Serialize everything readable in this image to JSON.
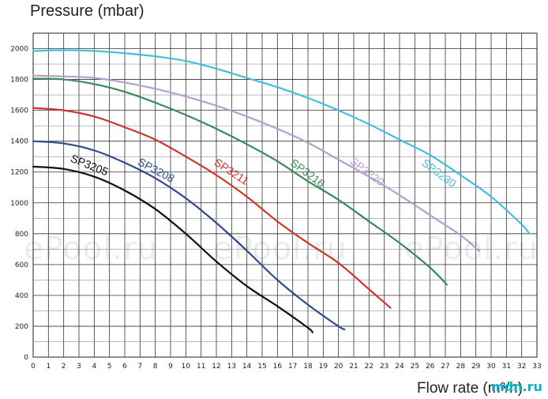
{
  "chart_data": {
    "type": "line",
    "ylabel": "Pressure (mbar)",
    "xlabel": "Flow rate (m³/h)",
    "xlim": [
      0,
      33
    ],
    "ylim": [
      0,
      2100
    ],
    "x_ticks": [
      0,
      1,
      2,
      3,
      4,
      5,
      6,
      7,
      8,
      9,
      10,
      11,
      12,
      13,
      14,
      15,
      16,
      17,
      18,
      19,
      20,
      21,
      22,
      23,
      24,
      25,
      26,
      27,
      28,
      29,
      30,
      31,
      32,
      33
    ],
    "y_ticks": [
      0,
      200,
      400,
      600,
      800,
      1000,
      1200,
      1400,
      1600,
      1800,
      2000
    ],
    "grid": true,
    "legend": "none (labels on curves)",
    "series": [
      {
        "name": "SP3205",
        "color": "#111111",
        "shutoff": 1235,
        "end_x": 18.3,
        "end_y": 160,
        "points": [
          [
            0,
            1235
          ],
          [
            2,
            1220
          ],
          [
            4,
            1170
          ],
          [
            6,
            1080
          ],
          [
            8,
            960
          ],
          [
            10,
            800
          ],
          [
            12,
            620
          ],
          [
            14,
            460
          ],
          [
            16,
            330
          ],
          [
            18,
            190
          ],
          [
            18.3,
            160
          ]
        ]
      },
      {
        "name": "SP3208",
        "color": "#2e4b8c",
        "shutoff": 1400,
        "end_x": 20.4,
        "end_y": 180,
        "points": [
          [
            0,
            1400
          ],
          [
            2,
            1385
          ],
          [
            4,
            1340
          ],
          [
            6,
            1260
          ],
          [
            8,
            1160
          ],
          [
            10,
            1030
          ],
          [
            12,
            870
          ],
          [
            14,
            690
          ],
          [
            16,
            500
          ],
          [
            18,
            340
          ],
          [
            20,
            200
          ],
          [
            20.4,
            180
          ]
        ]
      },
      {
        "name": "SP3211",
        "color": "#d0342c",
        "shutoff": 1615,
        "end_x": 23.4,
        "end_y": 320,
        "points": [
          [
            0,
            1615
          ],
          [
            2,
            1600
          ],
          [
            4,
            1560
          ],
          [
            6,
            1490
          ],
          [
            8,
            1410
          ],
          [
            10,
            1300
          ],
          [
            12,
            1180
          ],
          [
            14,
            1040
          ],
          [
            16,
            880
          ],
          [
            18,
            740
          ],
          [
            20,
            610
          ],
          [
            22,
            440
          ],
          [
            23.4,
            320
          ]
        ]
      },
      {
        "name": "SP3216",
        "color": "#3a8a5a",
        "shutoff": 1805,
        "end_x": 27.1,
        "end_y": 470,
        "points": [
          [
            0,
            1805
          ],
          [
            2,
            1800
          ],
          [
            4,
            1770
          ],
          [
            6,
            1720
          ],
          [
            8,
            1650
          ],
          [
            10,
            1570
          ],
          [
            12,
            1480
          ],
          [
            14,
            1380
          ],
          [
            16,
            1270
          ],
          [
            18,
            1140
          ],
          [
            20,
            1020
          ],
          [
            22,
            880
          ],
          [
            24,
            740
          ],
          [
            26,
            580
          ],
          [
            27.1,
            470
          ]
        ]
      },
      {
        "name": "SP3220",
        "color": "#b4a0cf",
        "shutoff": 1825,
        "end_x": 29.2,
        "end_y": 690,
        "points": [
          [
            0,
            1825
          ],
          [
            2,
            1820
          ],
          [
            4,
            1810
          ],
          [
            6,
            1780
          ],
          [
            8,
            1740
          ],
          [
            10,
            1690
          ],
          [
            12,
            1630
          ],
          [
            14,
            1560
          ],
          [
            16,
            1480
          ],
          [
            18,
            1390
          ],
          [
            20,
            1280
          ],
          [
            22,
            1170
          ],
          [
            24,
            1050
          ],
          [
            26,
            920
          ],
          [
            28,
            790
          ],
          [
            29.2,
            690
          ]
        ]
      },
      {
        "name": "SP3230",
        "color": "#40c0dc",
        "shutoff": 1985,
        "end_x": 32.5,
        "end_y": 800,
        "points": [
          [
            0,
            1985
          ],
          [
            2,
            1990
          ],
          [
            4,
            1985
          ],
          [
            6,
            1970
          ],
          [
            8,
            1950
          ],
          [
            10,
            1920
          ],
          [
            12,
            1870
          ],
          [
            14,
            1810
          ],
          [
            16,
            1750
          ],
          [
            18,
            1680
          ],
          [
            20,
            1600
          ],
          [
            22,
            1510
          ],
          [
            24,
            1410
          ],
          [
            26,
            1310
          ],
          [
            28,
            1180
          ],
          [
            30,
            1040
          ],
          [
            32,
            860
          ],
          [
            32.5,
            800
          ]
        ]
      }
    ]
  },
  "watermark": "ePool.ru",
  "logo": "mdn.ru"
}
